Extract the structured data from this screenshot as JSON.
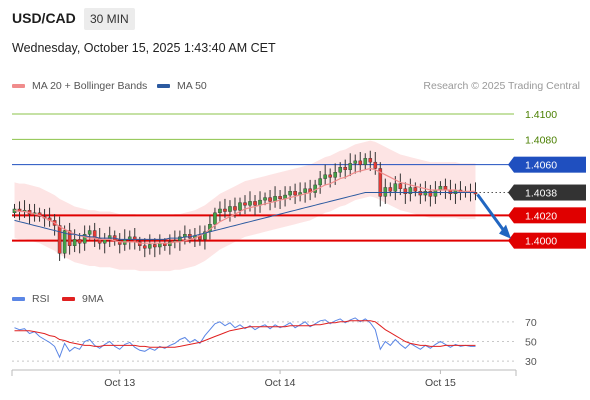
{
  "header": {
    "symbol": "USD/CAD",
    "timeframe": "30 MIN",
    "datetime": "Wednesday, October 15, 2025 1:43:40 AM CET"
  },
  "legend": {
    "ma20": {
      "label": "MA 20 + Bollinger Bands",
      "color": "#f08c8c"
    },
    "ma50": {
      "label": "MA 50",
      "color": "#2c5aa0"
    },
    "credit": "Research © 2025 Trading Central"
  },
  "rsi_legend": {
    "rsi": {
      "label": "RSI",
      "color": "#5b86e5"
    },
    "ma9": {
      "label": "9MA",
      "color": "#e02020"
    }
  },
  "chart_data": [
    {
      "type": "candlestick",
      "title": "",
      "ylim": [
        1.3965,
        1.4115
      ],
      "x_tick_labels": [
        "Oct 13",
        "Oct 14",
        "Oct 15"
      ],
      "x_tick_bars": [
        21,
        53,
        85
      ],
      "bars": 93,
      "price_levels": [
        {
          "value": 1.41,
          "label": "1.4100",
          "style": "green-line"
        },
        {
          "value": 1.408,
          "label": "1.4080",
          "style": "green-line"
        },
        {
          "value": 1.406,
          "label": "1.4060",
          "style": "blue-line-blue-tag"
        },
        {
          "value": 1.4038,
          "label": "1.4038",
          "style": "dotted-dark-tag"
        },
        {
          "value": 1.402,
          "label": "1.4020",
          "style": "red-line-red-tag"
        },
        {
          "value": 1.4,
          "label": "1.4000",
          "style": "red-line-red-tag"
        }
      ],
      "candles_close": [
        1.4025,
        1.4023,
        1.4024,
        1.4021,
        1.4022,
        1.4019,
        1.4018,
        1.4016,
        1.4012,
        1.399,
        1.4008,
        1.3996,
        1.4001,
        1.3998,
        1.4005,
        1.4008,
        1.4002,
        1.3998,
        1.4001,
        1.4004,
        1.4,
        1.3997,
        1.4001,
        1.4003,
        1.3999,
        1.3996,
        1.3994,
        1.3997,
        1.3995,
        1.3998,
        1.3996,
        1.3999,
        1.4,
        1.4003,
        1.4005,
        1.4002,
        1.4004,
        1.4001,
        1.4007,
        1.4013,
        1.4022,
        1.4025,
        1.4023,
        1.4027,
        1.4024,
        1.403,
        1.4028,
        1.4031,
        1.4028,
        1.4032,
        1.4034,
        1.4031,
        1.4035,
        1.4033,
        1.4036,
        1.4039,
        1.4036,
        1.4038,
        1.4041,
        1.4038,
        1.4044,
        1.4049,
        1.4052,
        1.405,
        1.4054,
        1.4058,
        1.4056,
        1.4061,
        1.4063,
        1.406,
        1.4065,
        1.4062,
        1.4057,
        1.4035,
        1.4042,
        1.4039,
        1.4045,
        1.4041,
        1.4037,
        1.4042,
        1.4039,
        1.4036,
        1.4039,
        1.4035,
        1.404,
        1.4043,
        1.404,
        1.4037,
        1.404,
        1.4038,
        1.4039,
        1.4038,
        1.4037
      ],
      "ma20": [
        1.4024,
        1.4023,
        1.4023,
        1.4022,
        1.4021,
        1.402,
        1.4018,
        1.4016,
        1.4014,
        1.4011,
        1.4009,
        1.4007,
        1.4005,
        1.4004,
        1.4003,
        1.4002,
        1.4002,
        1.4001,
        1.4001,
        1.4001,
        1.4,
        1.3999,
        1.3999,
        1.3999,
        1.3999,
        1.3998,
        1.3998,
        1.3998,
        1.3998,
        1.3998,
        1.3998,
        1.3998,
        1.3999,
        1.3999,
        1.4,
        1.4001,
        1.4002,
        1.4004,
        1.4006,
        1.4009,
        1.4012,
        1.4015,
        1.4017,
        1.4019,
        1.4021,
        1.4023,
        1.4025,
        1.4026,
        1.4027,
        1.4028,
        1.4029,
        1.403,
        1.4031,
        1.4032,
        1.4033,
        1.4034,
        1.4035,
        1.4036,
        1.4037,
        1.4038,
        1.404,
        1.4042,
        1.4044,
        1.4045,
        1.4047,
        1.4049,
        1.405,
        1.4052,
        1.4054,
        1.4055,
        1.4056,
        1.4057,
        1.4056,
        1.4054,
        1.4052,
        1.405,
        1.4048,
        1.4046,
        1.4045,
        1.4044,
        1.4043,
        1.4042,
        1.4041,
        1.404,
        1.404,
        1.404,
        1.404,
        1.404,
        1.404,
        1.4039,
        1.4039,
        1.4039,
        1.4039
      ],
      "ma50": [
        1.4016,
        1.4015,
        1.4014,
        1.4013,
        1.4012,
        1.4011,
        1.401,
        1.4009,
        1.4008,
        1.4007,
        1.4006,
        1.4005,
        1.4005,
        1.4004,
        1.4004,
        1.4003,
        1.4003,
        1.4002,
        1.4002,
        1.4002,
        1.4002,
        1.4001,
        1.4001,
        1.4001,
        1.4001,
        1.4001,
        1.4001,
        1.4001,
        1.4001,
        1.4001,
        1.4001,
        1.4002,
        1.4002,
        1.4002,
        1.4003,
        1.4003,
        1.4004,
        1.4005,
        1.4006,
        1.4007,
        1.4008,
        1.4009,
        1.401,
        1.4011,
        1.4012,
        1.4013,
        1.4014,
        1.4015,
        1.4016,
        1.4017,
        1.4018,
        1.4019,
        1.402,
        1.4021,
        1.4022,
        1.4023,
        1.4024,
        1.4025,
        1.4026,
        1.4027,
        1.4028,
        1.4029,
        1.403,
        1.4031,
        1.4032,
        1.4033,
        1.4034,
        1.4035,
        1.4036,
        1.4037,
        1.4038,
        1.4038,
        1.4038,
        1.4038,
        1.4038,
        1.4038,
        1.4038,
        1.4038,
        1.4038,
        1.4038,
        1.4038,
        1.4038,
        1.4038,
        1.4038,
        1.4038,
        1.4038,
        1.4038,
        1.4038,
        1.4038,
        1.4038,
        1.4038,
        1.4038,
        1.4038
      ],
      "bollinger_halfwidth": 0.0022,
      "forecast_arrow": {
        "from": 1.4038,
        "to": 1.4
      }
    },
    {
      "type": "line",
      "title": "RSI",
      "ylim": [
        25,
        80
      ],
      "y_ticks": [
        70,
        50,
        30
      ],
      "series": [
        {
          "name": "RSI",
          "color": "#5b86e5",
          "values": [
            64,
            62,
            63,
            58,
            60,
            55,
            52,
            49,
            45,
            34,
            48,
            40,
            44,
            42,
            50,
            52,
            46,
            43,
            47,
            50,
            45,
            42,
            47,
            49,
            44,
            41,
            40,
            43,
            41,
            45,
            43,
            46,
            48,
            52,
            54,
            49,
            52,
            48,
            56,
            62,
            68,
            70,
            66,
            69,
            64,
            67,
            63,
            66,
            62,
            65,
            67,
            63,
            67,
            64,
            66,
            69,
            64,
            67,
            70,
            65,
            68,
            71,
            72,
            68,
            71,
            73,
            69,
            72,
            74,
            70,
            73,
            69,
            62,
            42,
            50,
            46,
            52,
            47,
            43,
            48,
            45,
            42,
            46,
            43,
            47,
            50,
            47,
            44,
            47,
            45,
            46,
            45,
            45
          ]
        },
        {
          "name": "9MA",
          "color": "#e02020",
          "values": [
            61,
            61,
            61,
            61,
            60,
            59,
            58,
            56,
            55,
            52,
            51,
            49,
            48,
            47,
            46,
            46,
            45,
            45,
            46,
            46,
            46,
            46,
            46,
            46,
            46,
            45,
            45,
            44,
            44,
            44,
            44,
            44,
            44,
            45,
            46,
            47,
            48,
            49,
            51,
            53,
            55,
            57,
            59,
            61,
            62,
            63,
            64,
            65,
            65,
            65,
            65,
            65,
            65,
            65,
            65,
            66,
            66,
            66,
            66,
            66,
            67,
            67,
            68,
            69,
            69,
            70,
            70,
            71,
            71,
            71,
            71,
            71,
            70,
            66,
            62,
            59,
            56,
            53,
            50,
            48,
            47,
            46,
            46,
            45,
            45,
            45,
            46,
            46,
            46,
            46,
            46,
            46,
            46
          ]
        }
      ]
    }
  ]
}
